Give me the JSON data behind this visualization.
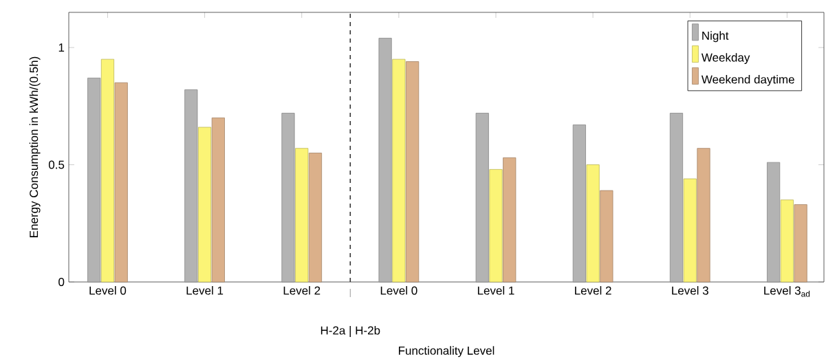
{
  "chart_data": {
    "type": "bar",
    "xlabel": "Functionality Level",
    "ylabel": "Energy Consumption in kWh/(0.5h)",
    "categories": [
      "Level 0",
      "Level 1",
      "Level 2",
      "Level 0",
      "Level 1",
      "Level 2",
      "Level 3",
      "Level 3$_{ad}$"
    ],
    "series": [
      {
        "name": "Night",
        "color": "#b3b3b3",
        "values": [
          0.87,
          0.82,
          0.72,
          1.04,
          0.72,
          0.67,
          0.72,
          0.51
        ]
      },
      {
        "name": "Weekday",
        "color": "#fbf476",
        "values": [
          0.95,
          0.66,
          0.57,
          0.95,
          0.48,
          0.5,
          0.44,
          0.35
        ]
      },
      {
        "name": "Weekend daytime",
        "color": "#dbb08a",
        "values": [
          0.85,
          0.7,
          0.55,
          0.94,
          0.53,
          0.39,
          0.57,
          0.33
        ]
      }
    ],
    "ylim": [
      0,
      1.15
    ],
    "yticks": [
      0,
      0.5,
      1
    ],
    "annotations": [
      "H-2a | H-2b"
    ],
    "legend": "top right"
  }
}
